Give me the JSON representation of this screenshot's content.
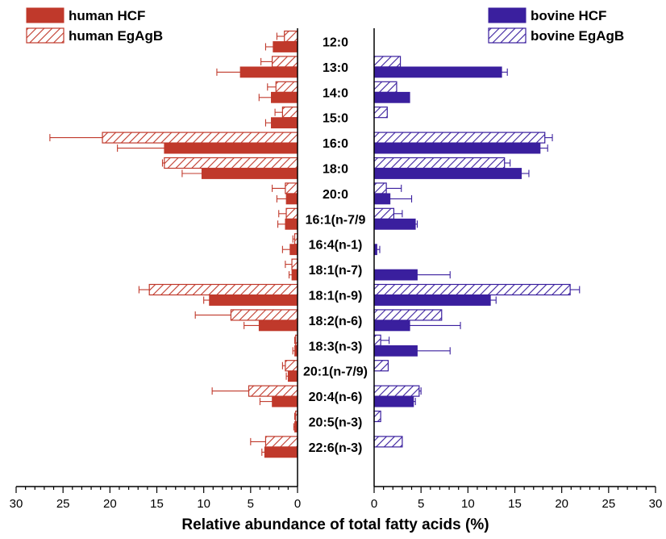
{
  "chart_data": {
    "type": "bar",
    "orientation": "horizontal-butterfly",
    "xlabel": "Relative abundance of total fatty acids (%)",
    "xlim": [
      0,
      30
    ],
    "xticks": [
      "30",
      "25",
      "20",
      "15",
      "10",
      "5",
      "0"
    ],
    "xticks_right": [
      "0",
      "5",
      "10",
      "15",
      "20",
      "25",
      "30"
    ],
    "categories": [
      "12:0",
      "13:0",
      "14:0",
      "15:0",
      "16:0",
      "18:0",
      "20:0",
      "16:1(n-7/9",
      "16:4(n-1)",
      "18:1(n-7)",
      "18:1(n-9)",
      "18:2(n-6)",
      "18:3(n-3)",
      "20:1(n-7/9)",
      "20:4(n-6)",
      "20:5(n-3)",
      "22:6(n-3)"
    ],
    "series": [
      {
        "name": "human HCF",
        "side": "left",
        "pattern": "solid",
        "color": "#c0392b",
        "values": [
          2.6,
          6.1,
          2.8,
          2.8,
          14.2,
          10.2,
          1.2,
          1.3,
          0.8,
          0.6,
          9.4,
          4.1,
          0.3,
          1.0,
          2.7,
          0.3,
          3.5
        ],
        "errors": [
          0.8,
          2.5,
          1.3,
          0.6,
          5.0,
          2.1,
          1.0,
          0.8,
          0.8,
          0.3,
          0.6,
          1.6,
          0.2,
          0.2,
          1.3,
          0.1,
          0.3
        ]
      },
      {
        "name": "human EgAgB",
        "side": "left",
        "pattern": "hatched",
        "color": "#c0392b",
        "values": [
          1.4,
          2.7,
          2.3,
          1.6,
          20.8,
          14.2,
          1.3,
          1.2,
          0.3,
          0.6,
          15.8,
          7.1,
          0.2,
          1.3,
          5.2,
          0.2,
          3.4
        ],
        "errors": [
          0.8,
          1.2,
          0.9,
          0.8,
          5.6,
          0.2,
          1.4,
          0.8,
          0.2,
          0.7,
          1.1,
          3.8,
          0.1,
          0.3,
          3.9,
          0.1,
          1.6
        ]
      },
      {
        "name": "bovine HCF",
        "side": "right",
        "pattern": "solid",
        "color": "#3a1f9e",
        "values": [
          0,
          13.6,
          3.8,
          0,
          17.7,
          15.7,
          1.7,
          4.4,
          0.3,
          4.6,
          12.4,
          3.8,
          4.6,
          0,
          4.2,
          0,
          0
        ],
        "errors": [
          0,
          0.6,
          0,
          0,
          0.8,
          0.8,
          2.3,
          0.2,
          0.3,
          3.5,
          0.6,
          5.4,
          3.5,
          0,
          0.2,
          0,
          0
        ]
      },
      {
        "name": "bovine EgAgB",
        "side": "right",
        "pattern": "hatched",
        "color": "#3a1f9e",
        "values": [
          0,
          2.8,
          2.4,
          1.4,
          18.2,
          13.9,
          1.3,
          2.1,
          0,
          0,
          20.9,
          7.2,
          0.7,
          1.5,
          4.8,
          0.7,
          3.0
        ],
        "errors": [
          0,
          0,
          0,
          0,
          0.8,
          0.6,
          1.6,
          0.9,
          0,
          0,
          1.0,
          0,
          0.9,
          0,
          0.2,
          0,
          0
        ]
      }
    ],
    "legend": [
      {
        "label": "human HCF",
        "position": "top-left"
      },
      {
        "label": "human EgAgB",
        "position": "top-left"
      },
      {
        "label": "bovine HCF",
        "position": "top-right"
      },
      {
        "label": "bovine EgAgB",
        "position": "top-right"
      }
    ],
    "colors": {
      "human": "#c0392b",
      "bovine": "#3a1f9e"
    }
  }
}
